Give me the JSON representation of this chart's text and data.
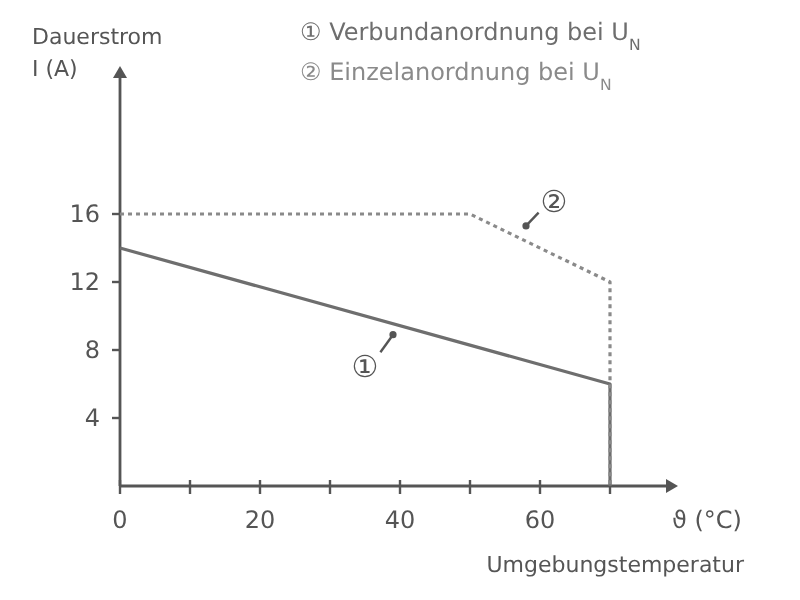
{
  "chart_data": {
    "type": "line",
    "xlabel": "ϑ (°C)\nUmgebungstemperatur",
    "ylabel": "Dauerstrom\nI (A)",
    "xlim": [
      0,
      78
    ],
    "ylim": [
      0,
      24
    ],
    "xticks": [
      0,
      {
        "value": 10,
        "label": null
      },
      20,
      {
        "value": 30,
        "label": null
      },
      40,
      {
        "value": 50,
        "label": null
      },
      60,
      {
        "value": 70,
        "label": null
      }
    ],
    "yticks": [
      4,
      8,
      12,
      16
    ],
    "series": [
      {
        "name": "① Verbundanordnung bei U$_{N}$",
        "color": "#6e6e6e",
        "line_style": "solid",
        "x": [
          0,
          70,
          70
        ],
        "values": [
          14,
          6,
          0
        ]
      },
      {
        "name": "② Einzelanordnung bei U$_{N}$",
        "color": "#8a8a8a",
        "line_style": "dotted",
        "x": [
          0,
          50,
          70,
          70
        ],
        "values": [
          16,
          16,
          12,
          0
        ]
      }
    ],
    "annotations": [
      {
        "text": "①",
        "x": 39,
        "y": 8.9
      },
      {
        "text": "②",
        "x": 58,
        "y": 15.3
      }
    ],
    "legend": "top right",
    "grid": false
  }
}
